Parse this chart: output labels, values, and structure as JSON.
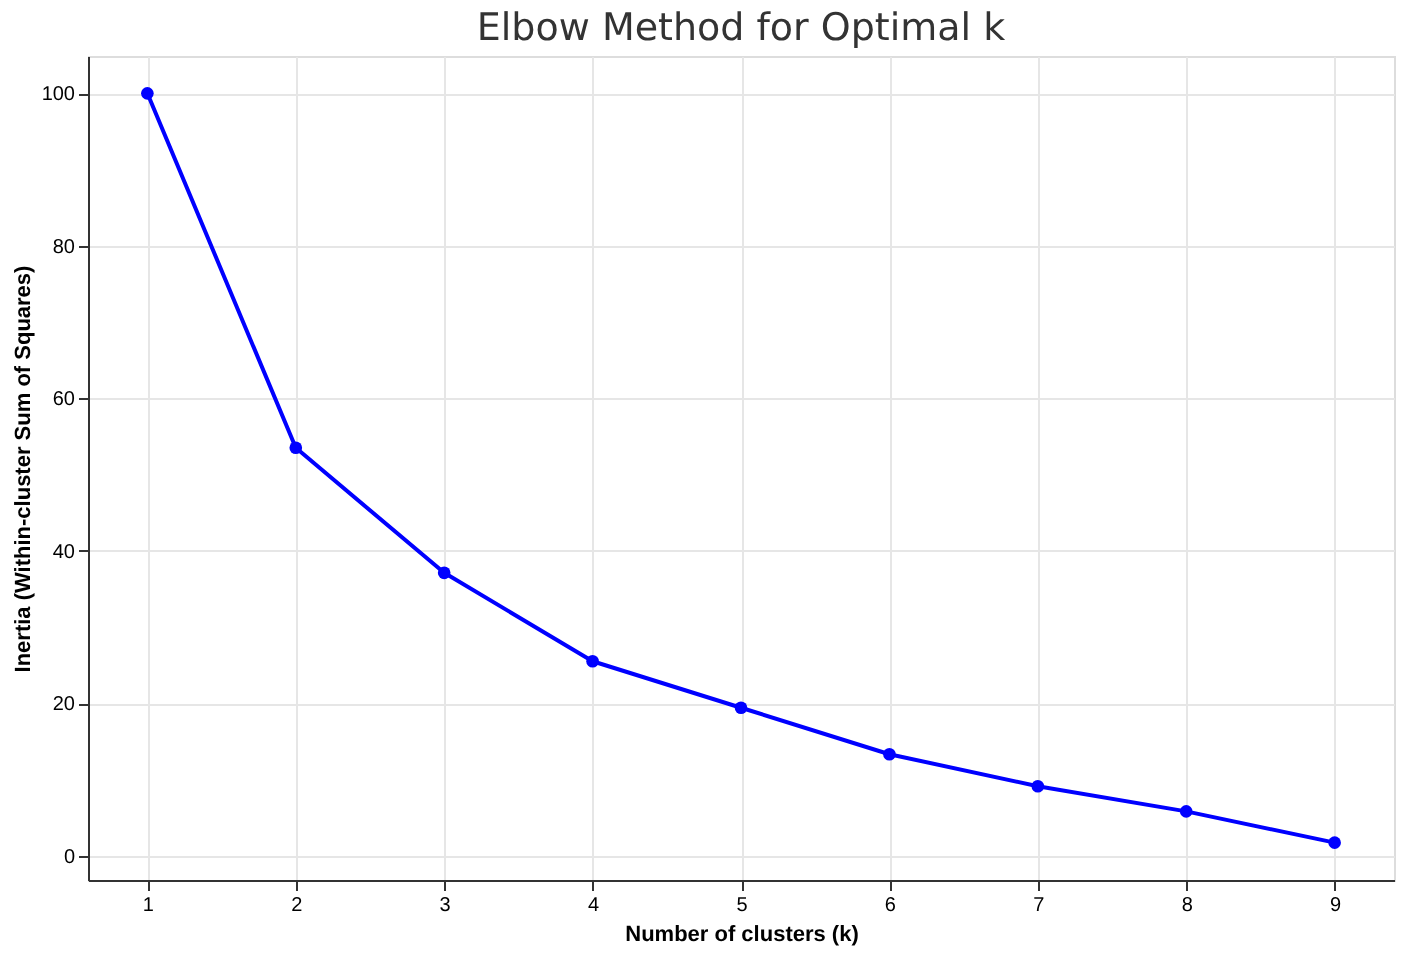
{
  "chart_data": {
    "type": "line",
    "title": "Elbow Method for Optimal k",
    "xlabel": "Number of clusters (k)",
    "ylabel": "Inertia (Within-cluster Sum of Squares)",
    "x": [
      1,
      2,
      3,
      4,
      5,
      6,
      7,
      8,
      9
    ],
    "series": [
      {
        "color": "#0000ff",
        "values": [
          100,
          53.5,
          37.1,
          25.5,
          19.4,
          13.3,
          9.1,
          5.8,
          1.7
        ]
      }
    ],
    "xlim": [
      0.6,
      9.4
    ],
    "xticks": [
      1,
      2,
      3,
      4,
      5,
      6,
      7,
      8,
      9
    ],
    "ylim": [
      -3.2,
      104.9
    ],
    "yticks": [
      0,
      20,
      40,
      60,
      80,
      100
    ],
    "grid": true,
    "marker": "circle",
    "line_style": "solid",
    "legend": false
  }
}
